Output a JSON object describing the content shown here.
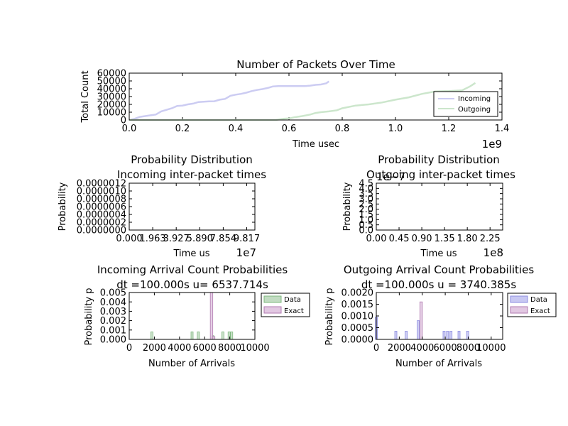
{
  "colors": {
    "incoming": "#ccccf2",
    "outgoing": "#cce6cc",
    "data_green_fill": "#c2dcc2",
    "data_green_edge": "#7fb87f",
    "exact_purple_fill": "#e2c8e2",
    "exact_purple_edge": "#b07ab0",
    "data_blue_fill": "#c8c8f2",
    "data_blue_edge": "#8c8ce0"
  },
  "chart_data": [
    {
      "id": "packets",
      "type": "line",
      "title": "Number of Packets Over Time",
      "xlabel": "Time usec",
      "ylabel": "Total Count",
      "x_offset_label": "1e9",
      "xlim": [
        0,
        1.4
      ],
      "ylim": [
        0,
        60000
      ],
      "xticks": [
        "0.0",
        "0.2",
        "0.4",
        "0.6",
        "0.8",
        "1.0",
        "1.2",
        "1.4"
      ],
      "yticks": [
        "0",
        "10000",
        "20000",
        "30000",
        "40000",
        "50000",
        "60000"
      ],
      "legend": {
        "placement": "lower-right",
        "entries": [
          "Incoming",
          "Outgoing"
        ]
      },
      "series": [
        {
          "name": "Incoming",
          "x": [
            0.0,
            0.02,
            0.04,
            0.06,
            0.08,
            0.1,
            0.12,
            0.14,
            0.16,
            0.18,
            0.2,
            0.22,
            0.24,
            0.26,
            0.28,
            0.3,
            0.32,
            0.34,
            0.36,
            0.38,
            0.4,
            0.42,
            0.44,
            0.46,
            0.48,
            0.5,
            0.52,
            0.54,
            0.56,
            0.58,
            0.6,
            0.62,
            0.64,
            0.66,
            0.68,
            0.7,
            0.72,
            0.74,
            0.75
          ],
          "y": [
            0,
            1500,
            4000,
            5000,
            6000,
            7000,
            11000,
            13000,
            15000,
            18000,
            18500,
            20000,
            21000,
            23000,
            23500,
            23800,
            24000,
            26000,
            27000,
            31000,
            32500,
            33500,
            35000,
            37000,
            38500,
            39500,
            41000,
            43000,
            43500,
            43500,
            43500,
            43500,
            43500,
            43500,
            44000,
            45000,
            45500,
            47000,
            49500
          ]
        },
        {
          "name": "Outgoing",
          "x": [
            0.0,
            0.55,
            0.58,
            0.6,
            0.62,
            0.65,
            0.68,
            0.7,
            0.72,
            0.75,
            0.78,
            0.8,
            0.85,
            0.9,
            0.95,
            1.0,
            1.05,
            1.1,
            1.15,
            1.2,
            1.25,
            1.28,
            1.3
          ],
          "y": [
            0,
            0,
            1500,
            2000,
            3500,
            5000,
            7000,
            9000,
            10000,
            11000,
            12500,
            15000,
            18500,
            20000,
            22500,
            26000,
            29000,
            33500,
            36500,
            37000,
            38000,
            43000,
            47500
          ]
        }
      ]
    },
    {
      "id": "incoming-dist",
      "type": "line",
      "title": "Probability Distribution",
      "subtitle": "Incoming inter-packet times",
      "xlabel": "Time us",
      "ylabel": "Probability",
      "x_offset_label": "1e7",
      "xticks": [
        "0.000",
        "1.963",
        "3.927",
        "5.890",
        "7.854",
        "9.817"
      ],
      "yticks": [
        "0.0000000",
        "0.0000002",
        "0.0000004",
        "0.0000006",
        "0.0000008",
        "0.0000010",
        "0.0000012"
      ],
      "xlim": [
        0,
        10.5
      ],
      "ylim": [
        0,
        1.2e-06
      ]
    },
    {
      "id": "outgoing-dist",
      "type": "line",
      "title": "Probability Distribution",
      "subtitle": "Outgoing inter-packet times",
      "xlabel": "Time us",
      "ylabel": "Probability",
      "x_offset_label": "1e8",
      "y_offset_label": "1e−7",
      "xticks": [
        "0.00",
        "0.45",
        "0.90",
        "1.35",
        "1.80",
        "2.25"
      ],
      "yticks": [
        "0.0",
        "0.5",
        "1.0",
        "1.5",
        "2.0",
        "2.5",
        "3.0",
        "3.5",
        "4.0",
        "4.5"
      ],
      "xlim": [
        0,
        2.5
      ],
      "ylim": [
        0,
        4.5
      ]
    },
    {
      "id": "incoming-arrivals",
      "type": "bar",
      "title": "Incoming Arrival Count Probabilities",
      "subtitle": "dt =100.000s u= 6537.714s",
      "xlabel": "Number of Arrivals",
      "ylabel": "Probability p",
      "xlim": [
        0,
        10000
      ],
      "ylim": [
        0,
        0.005
      ],
      "xticks": [
        "0",
        "2000",
        "4000",
        "6000",
        "8000",
        "10000"
      ],
      "yticks": [
        "0.000",
        "0.001",
        "0.002",
        "0.003",
        "0.004",
        "0.005"
      ],
      "legend": {
        "placement": "right",
        "entries": [
          "Data",
          "Exact"
        ]
      },
      "series": [
        {
          "name": "Data",
          "bars": [
            [
              1800,
              0.0008
            ],
            [
              5000,
              0.0008
            ],
            [
              5500,
              0.0008
            ],
            [
              6650,
              0.0004
            ],
            [
              7450,
              0.0008
            ],
            [
              7950,
              0.0008
            ],
            [
              8150,
              0.0008
            ]
          ]
        },
        {
          "name": "Exact",
          "bars": [
            [
              6550,
              0.005
            ],
            [
              6720,
              0.0003
            ]
          ]
        }
      ]
    },
    {
      "id": "outgoing-arrivals",
      "type": "bar",
      "title": "Outgoing Arrival Count Probabilities",
      "subtitle": "dt =100.000s u = 3740.385s",
      "xlabel": "Number of Arrivals",
      "ylabel": "Probability p",
      "xlim": [
        0,
        11000
      ],
      "ylim": [
        0,
        0.002
      ],
      "xticks": [
        "0",
        "2000",
        "4000",
        "6000",
        "8000",
        "10000"
      ],
      "yticks": [
        "0.0000",
        "0.0005",
        "0.0010",
        "0.0015",
        "0.0020"
      ],
      "legend": {
        "placement": "right",
        "entries": [
          "Data",
          "Exact"
        ]
      },
      "series": [
        {
          "name": "Data",
          "bars": [
            [
              0,
              0.00095
            ],
            [
              1700,
              0.00035
            ],
            [
              2600,
              0.00035
            ],
            [
              3650,
              0.0008
            ],
            [
              5900,
              0.00035
            ],
            [
              6200,
              0.00035
            ],
            [
              6500,
              0.00035
            ],
            [
              7200,
              0.00035
            ],
            [
              7950,
              0.00035
            ]
          ]
        },
        {
          "name": "Exact",
          "bars": [
            [
              3900,
              0.0016
            ]
          ]
        }
      ]
    }
  ]
}
